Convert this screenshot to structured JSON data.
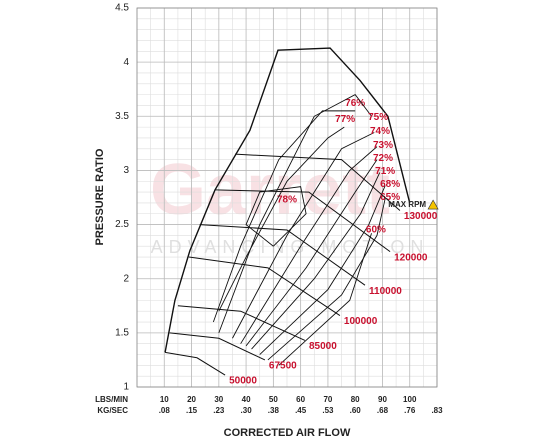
{
  "chart_data": {
    "type": "compressor-map",
    "ylabel": "PRESSURE RATIO",
    "xlabel": "CORRECTED AIR FLOW",
    "x_unit_label": "LBS/MIN",
    "x2_unit_label": "KG/SEC",
    "watermark": "Garrett",
    "watermark_sub": "ADVANCING MOTION",
    "xlim": [
      0,
      110
    ],
    "ylim": [
      1,
      4.5
    ],
    "xticks": [
      {
        "value": 10,
        "label": "10",
        "kg": ".08"
      },
      {
        "value": 20,
        "label": "20",
        "kg": ".15"
      },
      {
        "value": 30,
        "label": "30",
        "kg": ".23"
      },
      {
        "value": 40,
        "label": "40",
        "kg": ".30"
      },
      {
        "value": 50,
        "label": "50",
        "kg": ".38"
      },
      {
        "value": 60,
        "label": "60",
        "kg": ".45"
      },
      {
        "value": 70,
        "label": "70",
        "kg": ".53"
      },
      {
        "value": 80,
        "label": "80",
        "kg": ".60"
      },
      {
        "value": 90,
        "label": "90",
        "kg": ".68"
      },
      {
        "value": 100,
        "label": "100",
        "kg": ".76"
      },
      {
        "value": 110,
        "label": null,
        "kg": ".83"
      }
    ],
    "yticks": [
      1,
      1.5,
      2,
      2.5,
      3,
      3.5,
      4,
      4.5
    ],
    "minor_grid": {
      "x": 5,
      "y": 0.1
    },
    "line_color": "#111",
    "label_color": "#c8102e",
    "boundary": {
      "x": [
        10.3,
        13.9,
        19.4,
        28.6,
        41.4,
        51.7,
        70.8,
        81.8,
        92,
        97,
        100
      ],
      "y": [
        1.32,
        1.8,
        2.26,
        2.82,
        3.37,
        4.11,
        4.13,
        3.83,
        3.5,
        3.0,
        2.7
      ]
    },
    "speed_lines": [
      {
        "name": "50000",
        "x": [
          10.3,
          22,
          32.3
        ],
        "y": [
          1.32,
          1.27,
          1.11
        ]
      },
      {
        "name": "67500",
        "x": [
          12,
          30,
          46.9
        ],
        "y": [
          1.5,
          1.45,
          1.25
        ]
      },
      {
        "name": "85000",
        "x": [
          15,
          38,
          61.6
        ],
        "y": [
          1.75,
          1.7,
          1.43
        ]
      },
      {
        "name": "100000",
        "x": [
          19,
          48,
          74.4
        ],
        "y": [
          2.2,
          2.1,
          1.66
        ]
      },
      {
        "name": "110000",
        "x": [
          23,
          55,
          83.6
        ],
        "y": [
          2.5,
          2.45,
          1.94
        ]
      },
      {
        "name": "120000",
        "x": [
          28.6,
          63,
          92.8
        ],
        "y": [
          2.82,
          2.8,
          2.25
        ]
      },
      {
        "name": "130000",
        "x": [
          36,
          75,
          96.4
        ],
        "y": [
          3.15,
          3.1,
          2.63
        ]
      }
    ],
    "efficiency": [
      {
        "name": "78%",
        "x": [
          50,
          62,
          60,
          45,
          40,
          50
        ],
        "y": [
          2.3,
          2.6,
          2.85,
          2.8,
          2.5,
          2.3
        ],
        "at": [
          55,
          2.73
        ]
      },
      {
        "name": "77%",
        "x": [
          30,
          40,
          55,
          70,
          76
        ],
        "y": [
          1.7,
          2.2,
          2.9,
          3.3,
          3.4
        ],
        "at": [
          76.3,
          3.47
        ]
      },
      {
        "name": "76%",
        "x": [
          28,
          38,
          52,
          68,
          80
        ],
        "y": [
          1.6,
          2.3,
          3.1,
          3.55,
          3.55
        ],
        "at": [
          80,
          3.62
        ]
      },
      {
        "name": "75%",
        "x": [
          30,
          45,
          65,
          80,
          86
        ],
        "y": [
          1.5,
          2.5,
          3.5,
          3.7,
          3.5
        ],
        "at": [
          88.4,
          3.49
        ]
      },
      {
        "name": "74%",
        "x": [
          35,
          55,
          75,
          87
        ],
        "y": [
          1.45,
          2.4,
          3.2,
          3.35
        ],
        "at": [
          89.1,
          3.36
        ]
      },
      {
        "name": "73%",
        "x": [
          38,
          60,
          78,
          88
        ],
        "y": [
          1.4,
          2.3,
          3.0,
          3.22
        ],
        "at": [
          90.2,
          3.23
        ]
      },
      {
        "name": "72%",
        "x": [
          40,
          62,
          80,
          88
        ],
        "y": [
          1.38,
          2.1,
          2.8,
          3.1
        ],
        "at": [
          90.2,
          3.11
        ]
      },
      {
        "name": "71%",
        "x": [
          42,
          65,
          82,
          89
        ],
        "y": [
          1.35,
          2.0,
          2.6,
          2.98
        ],
        "at": [
          91,
          2.99
        ]
      },
      {
        "name": "68%",
        "x": [
          45,
          70,
          85,
          91
        ],
        "y": [
          1.3,
          1.9,
          2.5,
          2.86
        ],
        "at": [
          92.8,
          2.87
        ]
      },
      {
        "name": "65%",
        "x": [
          48,
          75,
          88,
          91
        ],
        "y": [
          1.25,
          1.85,
          2.4,
          2.74
        ],
        "at": [
          92.8,
          2.75
        ]
      },
      {
        "name": "60%",
        "x": [
          52,
          78,
          86
        ],
        "y": [
          1.2,
          1.8,
          2.42
        ],
        "at": [
          87.6,
          2.45
        ]
      }
    ],
    "max_rpm": {
      "label": "MAX RPM",
      "at": [
        106,
        2.68
      ]
    }
  }
}
